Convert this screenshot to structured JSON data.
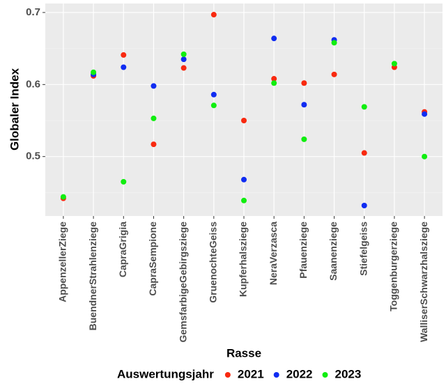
{
  "chart_data": {
    "type": "scatter",
    "x_label": "Rasse",
    "y_label": "Globaler Index",
    "legend_title": "Auswertungsjahr",
    "categories": [
      "AppenzellerZiege",
      "BuendnerStrahlenziege",
      "CapraGrigia",
      "CapraSempione",
      "GemsfarbigeGebirgsziege",
      "GruenochteGeiss",
      "Kupferhalsziege",
      "NeraVerzasca",
      "Pfauenziege",
      "Saanenziege",
      "Stiefelgeiss",
      "Toggenburgerziege",
      "WalliserSchwarzhalsziege"
    ],
    "series": [
      {
        "name": "2021",
        "color": "#f8290f",
        "values": [
          0.442,
          0.612,
          0.641,
          0.517,
          0.623,
          0.697,
          0.55,
          0.608,
          0.602,
          0.614,
          0.505,
          0.624,
          0.562
        ]
      },
      {
        "name": "2022",
        "color": "#0f2cf2",
        "values": [
          null,
          0.614,
          0.624,
          0.598,
          0.635,
          0.586,
          0.468,
          0.664,
          0.572,
          0.662,
          0.432,
          null,
          0.559
        ]
      },
      {
        "name": "2023",
        "color": "#10ee0f",
        "values": [
          0.444,
          0.617,
          0.465,
          0.553,
          0.642,
          0.571,
          0.439,
          0.602,
          0.524,
          0.658,
          0.569,
          0.629,
          0.5
        ]
      }
    ],
    "ylim": [
      0.4175,
      0.7125
    ],
    "yticks": [
      0.5,
      0.6,
      0.7
    ],
    "grid": true,
    "legend_position": "bottom"
  }
}
